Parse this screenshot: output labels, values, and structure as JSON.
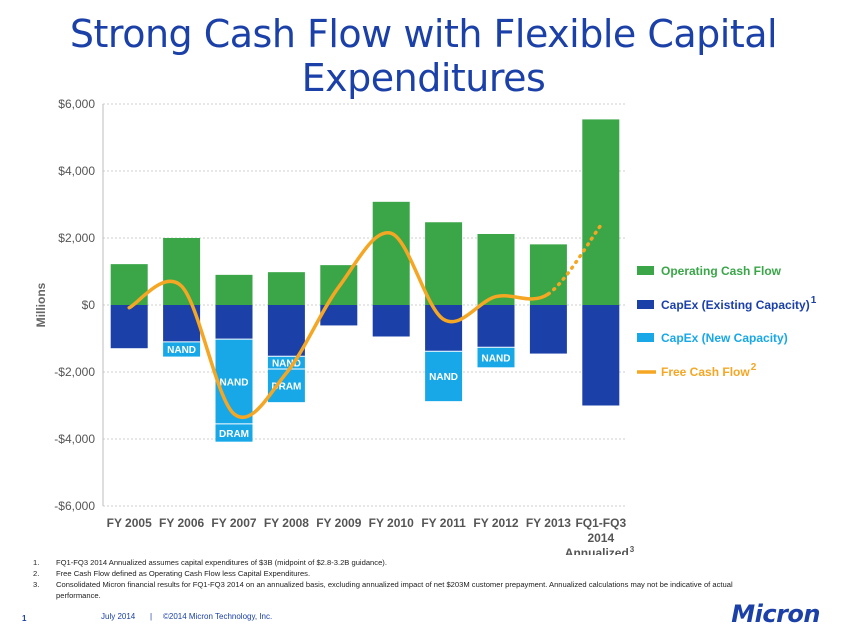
{
  "title": "Strong Cash Flow with Flexible Capital Expenditures",
  "chart_data": {
    "type": "bar",
    "ylabel": "Millions",
    "ylim": [
      -6000,
      6000
    ],
    "yticks": [
      6000,
      4000,
      2000,
      0,
      -2000,
      -4000,
      -6000
    ],
    "ytick_labels": [
      "$6,000",
      "$4,000",
      "$2,000",
      "$0",
      "-$2,000",
      "-$4,000",
      "-$6,000"
    ],
    "categories": [
      "FY 2005",
      "FY 2006",
      "FY 2007",
      "FY 2008",
      "FY 2009",
      "FY 2010",
      "FY 2011",
      "FY 2012",
      "FY 2013",
      "FQ1-FQ3 2014"
    ],
    "category_sublabel": "Annualized",
    "category_sublabel_sup": "3",
    "grid": true,
    "legend_position": "right",
    "series": [
      {
        "name": "Operating Cash Flow",
        "color": "#3aa648",
        "kind": "bar",
        "values": [
          1220,
          2000,
          900,
          980,
          1190,
          3080,
          2470,
          2120,
          1810,
          5540
        ]
      },
      {
        "name": "CapEx (Existing Capacity)",
        "name_sup": "1",
        "color": "#1b40a8",
        "kind": "bar",
        "values": [
          -1290,
          -1100,
          -1020,
          -1530,
          -610,
          -940,
          -1380,
          -1260,
          -1450,
          -3000
        ]
      },
      {
        "name": "CapEx (New Capacity)",
        "color": "#18a8e8",
        "kind": "bar",
        "values": [
          0,
          -440,
          -3060,
          -1370,
          0,
          0,
          -1490,
          -600,
          0,
          0
        ]
      },
      {
        "name": "Free Cash Flow",
        "name_sup": "2",
        "color": "#f5a623",
        "kind": "line",
        "values": [
          -80,
          560,
          -3250,
          -2030,
          540,
          2140,
          -430,
          250,
          330,
          2380
        ],
        "dotted_last_segment": true
      }
    ],
    "segment_labels": [
      {
        "category_index": 1,
        "series_index": 2,
        "text": "NAND"
      },
      {
        "category_index": 2,
        "series_index": 2,
        "text": "NAND",
        "sub_from": 0,
        "sub_to": -2530
      },
      {
        "category_index": 2,
        "series_index": 2,
        "text": "DRAM",
        "sub_from": -2530,
        "sub_to": -3060
      },
      {
        "category_index": 3,
        "series_index": 2,
        "text": "NAND",
        "sub_from": 0,
        "sub_to": -380
      },
      {
        "category_index": 3,
        "series_index": 2,
        "text": "DRAM",
        "sub_from": -380,
        "sub_to": -1370
      },
      {
        "category_index": 6,
        "series_index": 2,
        "text": "NAND"
      },
      {
        "category_index": 7,
        "series_index": 2,
        "text": "NAND"
      }
    ]
  },
  "footnotes": [
    {
      "num": "1.",
      "text": "FQ1-FQ3 2014  Annualized assumes capital expenditures of $3B (midpoint of $2.8-3.2B guidance)."
    },
    {
      "num": "2.",
      "text": "Free Cash Flow defined as Operating Cash Flow less Capital Expenditures."
    },
    {
      "num": "3.",
      "text": "Consolidated Micron financial results for FQ1-FQ3 2014 on an annualized basis, excluding annualized impact of net $203M customer prepayment. Annualized calculations may not be indicative of actual performance."
    }
  ],
  "footer": {
    "page_number": "1",
    "date": "July 2014",
    "separator": "|",
    "copyright": "©2014 Micron Technology, Inc.",
    "logo_text": "Micron",
    "brand_color": "#1b40a8"
  }
}
